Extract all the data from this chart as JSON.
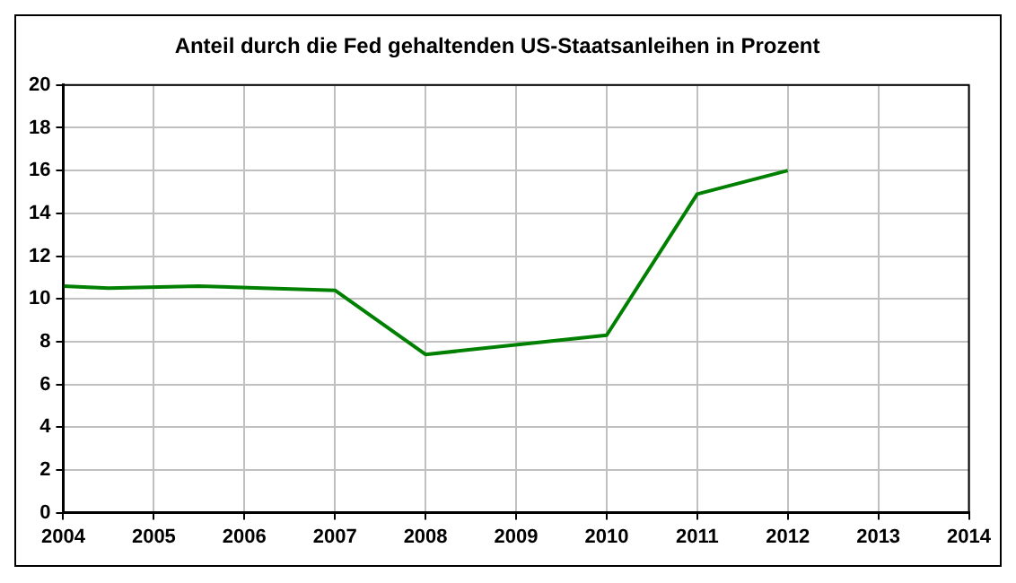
{
  "chart_data": {
    "type": "line",
    "title": "Anteil durch die Fed gehaltenden US-Staatsanleihen in Prozent",
    "x": [
      2004,
      2004.5,
      2005.5,
      2006.2,
      2007,
      2008,
      2010,
      2011,
      2012
    ],
    "series": [
      {
        "color": "#008000",
        "values": [
          10.6,
          10.5,
          10.6,
          10.5,
          10.4,
          7.4,
          8.3,
          14.9,
          16.0
        ]
      }
    ],
    "xlim": [
      2004,
      2014
    ],
    "xticks": [
      2004,
      2005,
      2006,
      2007,
      2008,
      2009,
      2010,
      2011,
      2012,
      2013,
      2014
    ],
    "ylim": [
      0,
      20
    ],
    "yticks": [
      0,
      2,
      4,
      6,
      8,
      10,
      12,
      14,
      16,
      18,
      20
    ],
    "grid": true,
    "legend": false,
    "marker": "none"
  }
}
